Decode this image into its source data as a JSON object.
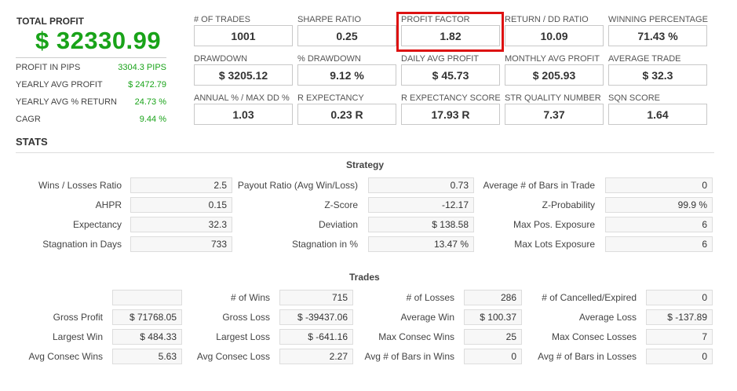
{
  "summary": {
    "total_profit_label": "TOTAL PROFIT",
    "total_profit_value": "$ 32330.99",
    "rows": [
      {
        "label": "PROFIT IN PIPS",
        "value": "3304.3 PIPS"
      },
      {
        "label": "YEARLY AVG PROFIT",
        "value": "$ 2472.79"
      },
      {
        "label": "YEARLY AVG % RETURN",
        "value": "24.73 %"
      },
      {
        "label": "CAGR",
        "value": "9.44 %"
      }
    ]
  },
  "metrics": [
    {
      "label": "# OF TRADES",
      "value": "1001"
    },
    {
      "label": "SHARPE RATIO",
      "value": "0.25"
    },
    {
      "label": "PROFIT FACTOR",
      "value": "1.82"
    },
    {
      "label": "RETURN / DD RATIO",
      "value": "10.09"
    },
    {
      "label": "WINNING PERCENTAGE",
      "value": "71.43 %"
    },
    {
      "label": "DRAWDOWN",
      "value": "$ 3205.12"
    },
    {
      "label": "% DRAWDOWN",
      "value": "9.12 %"
    },
    {
      "label": "DAILY AVG PROFIT",
      "value": "$ 45.73"
    },
    {
      "label": "MONTHLY AVG PROFIT",
      "value": "$ 205.93"
    },
    {
      "label": "AVERAGE TRADE",
      "value": "$ 32.3"
    },
    {
      "label": "ANNUAL % / MAX DD %",
      "value": "1.03"
    },
    {
      "label": "R EXPECTANCY",
      "value": "0.23 R"
    },
    {
      "label": "R EXPECTANCY SCORE",
      "value": "17.93 R"
    },
    {
      "label": "STR QUALITY NUMBER",
      "value": "7.37"
    },
    {
      "label": "SQN SCORE",
      "value": "1.64"
    }
  ],
  "stats_title": "STATS",
  "strategy": {
    "title": "Strategy",
    "rows": [
      [
        {
          "label": "Wins / Losses Ratio",
          "value": "2.5"
        },
        {
          "label": "Payout Ratio (Avg Win/Loss)",
          "value": "0.73"
        },
        {
          "label": "Average # of Bars in Trade",
          "value": "0"
        }
      ],
      [
        {
          "label": "AHPR",
          "value": "0.15"
        },
        {
          "label": "Z-Score",
          "value": "-12.17"
        },
        {
          "label": "Z-Probability",
          "value": "99.9 %"
        }
      ],
      [
        {
          "label": "Expectancy",
          "value": "32.3"
        },
        {
          "label": "Deviation",
          "value": "$ 138.58"
        },
        {
          "label": "Max Pos. Exposure",
          "value": "6"
        }
      ],
      [
        {
          "label": "Stagnation in Days",
          "value": "733"
        },
        {
          "label": "Stagnation in %",
          "value": "13.47 %"
        },
        {
          "label": "Max Lots Exposure",
          "value": "6"
        }
      ]
    ]
  },
  "trades": {
    "title": "Trades",
    "rows": [
      [
        {
          "label": "",
          "value": ""
        },
        {
          "label": "# of Wins",
          "value": "715"
        },
        {
          "label": "# of Losses",
          "value": "286"
        },
        {
          "label": "# of Cancelled/Expired",
          "value": "0"
        }
      ],
      [
        {
          "label": "Gross Profit",
          "value": "$ 71768.05"
        },
        {
          "label": "Gross Loss",
          "value": "$ -39437.06"
        },
        {
          "label": "Average Win",
          "value": "$ 100.37"
        },
        {
          "label": "Average Loss",
          "value": "$ -137.89"
        }
      ],
      [
        {
          "label": "Largest Win",
          "value": "$ 484.33"
        },
        {
          "label": "Largest Loss",
          "value": "$ -641.16"
        },
        {
          "label": "Max Consec Wins",
          "value": "25"
        },
        {
          "label": "Max Consec Losses",
          "value": "7"
        }
      ],
      [
        {
          "label": "Avg Consec Wins",
          "value": "5.63"
        },
        {
          "label": "Avg Consec Loss",
          "value": "2.27"
        },
        {
          "label": "Avg # of Bars in Wins",
          "value": "0"
        },
        {
          "label": "Avg # of Bars in Losses",
          "value": "0"
        }
      ]
    ]
  },
  "colors": {
    "accent_green": "#19a319",
    "highlight_red": "#dd1111"
  }
}
